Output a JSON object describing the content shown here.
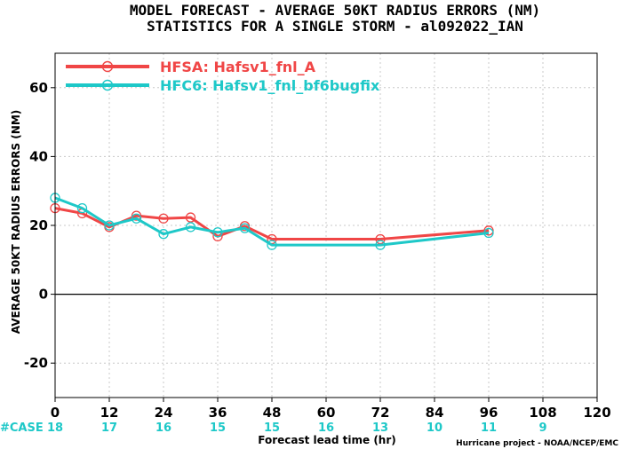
{
  "chart_data": {
    "type": "line",
    "title": "MODEL FORECAST - AVERAGE 50KT RADIUS ERRORS (NM)",
    "subtitle": "STATISTICS FOR A SINGLE STORM - al092022_IAN",
    "xlabel": "Forecast lead time (hr)",
    "ylabel": "AVERAGE 50KT RADIUS ERRORS (NM)",
    "xlim": [
      0,
      120
    ],
    "ylim": [
      -30,
      70
    ],
    "xticks": [
      0,
      12,
      24,
      36,
      48,
      60,
      72,
      84,
      96,
      108,
      120
    ],
    "yticks": [
      -20,
      0,
      20,
      40,
      60
    ],
    "grid": true,
    "legend_position": "top-left",
    "series": [
      {
        "name": "HFSA: Hafsv1_fnl_A",
        "color": "#f04646",
        "x": [
          0,
          6,
          12,
          18,
          24,
          30,
          36,
          42,
          48,
          72,
          96
        ],
        "y": [
          25,
          23.5,
          19.5,
          22.8,
          22,
          22.3,
          16.8,
          19.8,
          16,
          16,
          18.5
        ]
      },
      {
        "name": "HFC6: Hafsv1_fnl_bf6bugfix",
        "color": "#1ec8c8",
        "x": [
          0,
          6,
          12,
          18,
          24,
          30,
          36,
          42,
          48,
          72,
          96
        ],
        "y": [
          28,
          25,
          20,
          22,
          17.5,
          19.5,
          18,
          19.2,
          14.3,
          14.3,
          17.8
        ]
      }
    ],
    "cases_label": "#CASE",
    "cases": [
      {
        "x": 0,
        "n": "18"
      },
      {
        "x": 12,
        "n": "17"
      },
      {
        "x": 24,
        "n": "16"
      },
      {
        "x": 36,
        "n": "15"
      },
      {
        "x": 48,
        "n": "15"
      },
      {
        "x": 60,
        "n": "16"
      },
      {
        "x": 72,
        "n": "13"
      },
      {
        "x": 84,
        "n": "10"
      },
      {
        "x": 96,
        "n": "11"
      },
      {
        "x": 108,
        "n": "9"
      }
    ],
    "credit": "Hurricane project - NOAA/NCEP/EMC"
  }
}
